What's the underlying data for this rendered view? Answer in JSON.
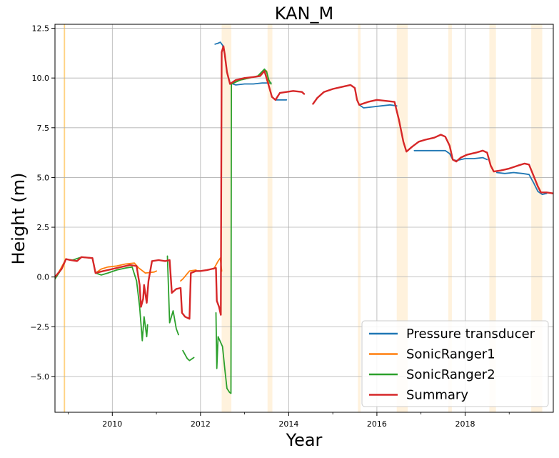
{
  "chart_data": {
    "type": "line",
    "title": "KAN_M",
    "xlabel": "Year",
    "ylabel": "Height (m)",
    "xlim": [
      2008.7,
      2020.0
    ],
    "ylim": [
      -6.8,
      12.7
    ],
    "xticks": [
      {
        "value": 2010,
        "label": "2010"
      },
      {
        "value": 2012,
        "label": "2012"
      },
      {
        "value": 2014,
        "label": "2014"
      },
      {
        "value": 2016,
        "label": "2016"
      },
      {
        "value": 2018,
        "label": "2018"
      }
    ],
    "yticks": [
      {
        "value": -5.0,
        "label": "−5.0"
      },
      {
        "value": -2.5,
        "label": "−2.5"
      },
      {
        "value": 0.0,
        "label": "0.0"
      },
      {
        "value": 2.5,
        "label": "2.5"
      },
      {
        "value": 5.0,
        "label": "5.0"
      },
      {
        "value": 7.5,
        "label": "7.5"
      },
      {
        "value": 10.0,
        "label": "10.0"
      },
      {
        "value": 12.5,
        "label": "12.5"
      }
    ],
    "grid": true,
    "legend_position": "bottom-right",
    "shaded_periods": [
      [
        2008.9,
        2008.93
      ],
      [
        2012.48,
        2012.7
      ],
      [
        2013.52,
        2013.63
      ],
      [
        2015.57,
        2015.63
      ],
      [
        2016.45,
        2016.7
      ],
      [
        2017.62,
        2017.7
      ],
      [
        2018.55,
        2018.7
      ],
      [
        2019.5,
        2019.75
      ]
    ],
    "series": [
      {
        "name": "Pressure transducer",
        "color": "#1f77b4",
        "segments": [
          [
            [
              2012.33,
              11.7
            ],
            [
              2012.4,
              11.75
            ],
            [
              2012.45,
              11.8
            ],
            [
              2012.5,
              11.65
            ],
            [
              2012.55,
              11.2
            ],
            [
              2012.6,
              10.3
            ],
            [
              2012.67,
              9.75
            ],
            [
              2012.8,
              9.65
            ],
            [
              2013.0,
              9.7
            ],
            [
              2013.2,
              9.7
            ],
            [
              2013.4,
              9.75
            ],
            [
              2013.6,
              9.75
            ]
          ],
          [
            [
              2013.7,
              8.9
            ],
            [
              2013.8,
              8.9
            ],
            [
              2013.95,
              8.9
            ]
          ],
          [
            [
              2015.6,
              8.65
            ],
            [
              2015.7,
              8.5
            ],
            [
              2015.9,
              8.55
            ],
            [
              2016.1,
              8.6
            ],
            [
              2016.3,
              8.65
            ],
            [
              2016.45,
              8.6
            ]
          ],
          [
            [
              2016.85,
              6.35
            ],
            [
              2017.0,
              6.35
            ],
            [
              2017.2,
              6.35
            ],
            [
              2017.4,
              6.35
            ],
            [
              2017.55,
              6.35
            ],
            [
              2017.65,
              6.2
            ],
            [
              2017.72,
              5.9
            ],
            [
              2017.8,
              5.85
            ],
            [
              2018.0,
              5.95
            ],
            [
              2018.2,
              5.95
            ],
            [
              2018.4,
              6.0
            ],
            [
              2018.5,
              5.9
            ]
          ],
          [
            [
              2018.72,
              5.25
            ],
            [
              2018.9,
              5.2
            ],
            [
              2019.1,
              5.25
            ],
            [
              2019.3,
              5.2
            ],
            [
              2019.45,
              5.15
            ],
            [
              2019.55,
              4.75
            ],
            [
              2019.65,
              4.3
            ],
            [
              2019.75,
              4.15
            ],
            [
              2019.85,
              4.2
            ]
          ]
        ]
      },
      {
        "name": "SonicRanger1",
        "color": "#ff7f0e",
        "segments": [
          [
            [
              2008.7,
              -0.1
            ],
            [
              2008.8,
              0.3
            ],
            [
              2008.95,
              0.9
            ],
            [
              2009.05,
              0.85
            ],
            [
              2009.2,
              0.8
            ],
            [
              2009.3,
              1.0
            ],
            [
              2009.55,
              0.95
            ],
            [
              2009.62,
              0.2
            ],
            [
              2009.75,
              0.4
            ],
            [
              2009.9,
              0.5
            ],
            [
              2010.1,
              0.55
            ],
            [
              2010.3,
              0.65
            ],
            [
              2010.5,
              0.7
            ],
            [
              2010.6,
              0.45
            ],
            [
              2010.75,
              0.2
            ],
            [
              2010.95,
              0.25
            ],
            [
              2011.0,
              0.3
            ]
          ],
          [
            [
              2011.55,
              -0.2
            ],
            [
              2011.6,
              -0.1
            ],
            [
              2011.75,
              0.3
            ],
            [
              2011.9,
              0.35
            ]
          ],
          [
            [
              2012.3,
              0.4
            ],
            [
              2012.4,
              0.8
            ],
            [
              2012.45,
              0.95
            ],
            [
              2012.48,
              0.3
            ]
          ],
          [
            [
              2012.7,
              9.7
            ],
            [
              2012.9,
              9.9
            ],
            [
              2013.1,
              10.0
            ],
            [
              2013.3,
              10.1
            ],
            [
              2013.45,
              10.4
            ],
            [
              2013.5,
              10.35
            ],
            [
              2013.55,
              9.7
            ]
          ]
        ]
      },
      {
        "name": "SonicRanger2",
        "color": "#2ca02c",
        "segments": [
          [
            [
              2008.7,
              -0.1
            ],
            [
              2008.85,
              0.4
            ],
            [
              2008.95,
              0.9
            ],
            [
              2009.1,
              0.85
            ],
            [
              2009.3,
              1.0
            ],
            [
              2009.55,
              0.95
            ],
            [
              2009.62,
              0.2
            ],
            [
              2009.75,
              0.1
            ],
            [
              2009.9,
              0.2
            ],
            [
              2010.1,
              0.35
            ],
            [
              2010.3,
              0.45
            ],
            [
              2010.45,
              0.5
            ],
            [
              2010.55,
              -0.2
            ],
            [
              2010.62,
              -1.5
            ],
            [
              2010.68,
              -3.2
            ],
            [
              2010.72,
              -2.0
            ],
            [
              2010.78,
              -3.0
            ],
            [
              2010.8,
              -2.4
            ]
          ],
          [
            [
              2011.25,
              1.05
            ],
            [
              2011.3,
              -2.3
            ],
            [
              2011.38,
              -1.7
            ],
            [
              2011.45,
              -2.6
            ],
            [
              2011.5,
              -2.9
            ]
          ],
          [
            [
              2011.6,
              -3.7
            ],
            [
              2011.7,
              -4.1
            ],
            [
              2011.75,
              -4.2
            ],
            [
              2011.85,
              -4.05
            ]
          ],
          [
            [
              2012.35,
              -1.8
            ],
            [
              2012.37,
              -4.6
            ],
            [
              2012.4,
              -3.0
            ],
            [
              2012.5,
              -3.5
            ],
            [
              2012.55,
              -4.6
            ],
            [
              2012.6,
              -5.6
            ],
            [
              2012.66,
              -5.8
            ],
            [
              2012.69,
              -5.85
            ],
            [
              2012.7,
              9.7
            ],
            [
              2012.9,
              9.9
            ],
            [
              2013.1,
              10.0
            ],
            [
              2013.3,
              10.1
            ],
            [
              2013.45,
              10.45
            ],
            [
              2013.5,
              10.3
            ],
            [
              2013.55,
              9.9
            ],
            [
              2013.6,
              9.7
            ]
          ]
        ]
      },
      {
        "name": "Summary",
        "color": "#d62728",
        "segments": [
          [
            [
              2008.7,
              0.0
            ],
            [
              2008.85,
              0.4
            ],
            [
              2008.95,
              0.9
            ],
            [
              2009.05,
              0.85
            ],
            [
              2009.2,
              0.8
            ],
            [
              2009.3,
              1.0
            ],
            [
              2009.55,
              0.95
            ],
            [
              2009.62,
              0.2
            ],
            [
              2009.8,
              0.3
            ],
            [
              2010.0,
              0.4
            ],
            [
              2010.2,
              0.5
            ],
            [
              2010.4,
              0.6
            ],
            [
              2010.55,
              0.55
            ],
            [
              2010.62,
              -0.4
            ],
            [
              2010.65,
              -1.5
            ],
            [
              2010.7,
              -1.1
            ],
            [
              2010.72,
              -0.4
            ],
            [
              2010.78,
              -1.3
            ],
            [
              2010.82,
              -0.2
            ],
            [
              2010.9,
              0.8
            ],
            [
              2011.05,
              0.85
            ],
            [
              2011.2,
              0.8
            ],
            [
              2011.3,
              0.85
            ],
            [
              2011.35,
              -0.8
            ],
            [
              2011.45,
              -0.6
            ],
            [
              2011.55,
              -0.55
            ],
            [
              2011.58,
              -1.8
            ],
            [
              2011.65,
              -2.0
            ],
            [
              2011.75,
              -2.1
            ],
            [
              2011.78,
              0.2
            ],
            [
              2011.9,
              0.3
            ],
            [
              2012.0,
              0.3
            ],
            [
              2012.15,
              0.35
            ],
            [
              2012.25,
              0.4
            ],
            [
              2012.35,
              0.45
            ],
            [
              2012.37,
              -1.2
            ],
            [
              2012.42,
              -1.5
            ],
            [
              2012.46,
              -1.9
            ],
            [
              2012.48,
              11.3
            ],
            [
              2012.52,
              11.6
            ],
            [
              2012.55,
              11.2
            ],
            [
              2012.6,
              10.3
            ],
            [
              2012.67,
              9.7
            ],
            [
              2012.8,
              9.9
            ],
            [
              2013.0,
              10.0
            ],
            [
              2013.2,
              10.05
            ],
            [
              2013.35,
              10.1
            ],
            [
              2013.45,
              10.35
            ],
            [
              2013.55,
              9.6
            ],
            [
              2013.62,
              9.05
            ],
            [
              2013.7,
              8.9
            ],
            [
              2013.8,
              9.25
            ],
            [
              2013.95,
              9.3
            ],
            [
              2014.1,
              9.35
            ],
            [
              2014.3,
              9.3
            ],
            [
              2014.35,
              9.2
            ]
          ],
          [
            [
              2014.55,
              8.7
            ],
            [
              2014.65,
              9.0
            ],
            [
              2014.8,
              9.3
            ],
            [
              2015.0,
              9.45
            ],
            [
              2015.2,
              9.55
            ],
            [
              2015.4,
              9.65
            ],
            [
              2015.5,
              9.5
            ],
            [
              2015.55,
              8.9
            ],
            [
              2015.6,
              8.65
            ],
            [
              2015.8,
              8.8
            ],
            [
              2016.0,
              8.9
            ],
            [
              2016.2,
              8.85
            ],
            [
              2016.4,
              8.8
            ],
            [
              2016.5,
              7.9
            ],
            [
              2016.6,
              6.8
            ],
            [
              2016.67,
              6.3
            ],
            [
              2016.8,
              6.55
            ],
            [
              2016.95,
              6.8
            ],
            [
              2017.1,
              6.9
            ],
            [
              2017.3,
              7.0
            ],
            [
              2017.45,
              7.15
            ],
            [
              2017.55,
              7.05
            ],
            [
              2017.65,
              6.6
            ],
            [
              2017.72,
              5.9
            ],
            [
              2017.8,
              5.8
            ],
            [
              2017.9,
              6.0
            ],
            [
              2018.05,
              6.15
            ],
            [
              2018.25,
              6.25
            ],
            [
              2018.4,
              6.35
            ],
            [
              2018.5,
              6.25
            ],
            [
              2018.58,
              5.6
            ],
            [
              2018.65,
              5.3
            ],
            [
              2018.8,
              5.35
            ],
            [
              2019.0,
              5.45
            ],
            [
              2019.2,
              5.6
            ],
            [
              2019.35,
              5.7
            ],
            [
              2019.45,
              5.65
            ],
            [
              2019.55,
              5.1
            ],
            [
              2019.65,
              4.55
            ],
            [
              2019.72,
              4.25
            ],
            [
              2019.85,
              4.25
            ],
            [
              2020.0,
              4.2
            ]
          ]
        ]
      }
    ]
  }
}
